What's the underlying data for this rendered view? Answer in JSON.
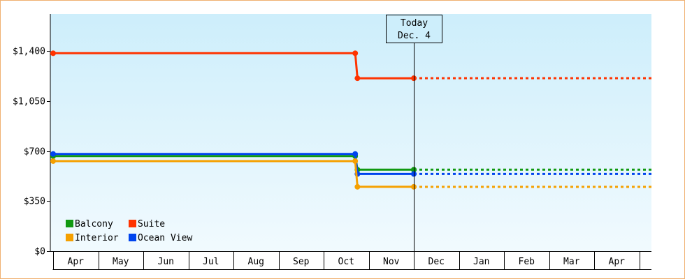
{
  "chart_data": {
    "type": "line",
    "subtype": "step",
    "x_axis": {
      "ticks": [
        "Apr",
        "May",
        "Jun",
        "Jul",
        "Aug",
        "Sep",
        "Oct",
        "Nov",
        "Dec",
        "Jan",
        "Feb",
        "Mar",
        "Apr"
      ]
    },
    "y_axis": {
      "ticks": [
        "$0",
        "$350",
        "$700",
        "$1,050",
        "$1,400"
      ],
      "tick_values": [
        0,
        350,
        700,
        1050,
        1400
      ],
      "ylim": [
        0,
        1660
      ]
    },
    "today_marker": {
      "line1": "Today",
      "line2": "Dec. 4",
      "x": 8.0
    },
    "grid": false,
    "legend_position": "bottom-left",
    "series": [
      {
        "name": "Suite",
        "color": "#ff3300",
        "points": [
          {
            "x": 0.0,
            "y": 1385
          },
          {
            "x": 6.7,
            "y": 1385
          },
          {
            "x": 6.75,
            "y": 1210
          },
          {
            "x": 8.0,
            "y": 1210
          }
        ],
        "projected": {
          "from": 8.0,
          "to": 13.3,
          "y": 1210
        }
      },
      {
        "name": "Balcony",
        "color": "#119911",
        "points": [
          {
            "x": 0.0,
            "y": 665
          },
          {
            "x": 6.7,
            "y": 665
          },
          {
            "x": 6.75,
            "y": 570
          },
          {
            "x": 8.0,
            "y": 570
          }
        ],
        "projected": {
          "from": 8.0,
          "to": 13.3,
          "y": 570
        }
      },
      {
        "name": "Ocean View",
        "color": "#0044ee",
        "points": [
          {
            "x": 0.0,
            "y": 680
          },
          {
            "x": 6.7,
            "y": 680
          },
          {
            "x": 6.75,
            "y": 540
          },
          {
            "x": 8.0,
            "y": 540
          }
        ],
        "projected": {
          "from": 8.0,
          "to": 13.3,
          "y": 540
        }
      },
      {
        "name": "Interior",
        "color": "#f5a000",
        "points": [
          {
            "x": 0.0,
            "y": 630
          },
          {
            "x": 6.7,
            "y": 630
          },
          {
            "x": 6.75,
            "y": 450
          },
          {
            "x": 8.0,
            "y": 450
          }
        ],
        "projected": {
          "from": 8.0,
          "to": 13.3,
          "y": 450
        }
      }
    ],
    "legend": [
      {
        "series": "Balcony",
        "color": "#119911"
      },
      {
        "series": "Suite",
        "color": "#ff3300"
      },
      {
        "series": "Interior",
        "color": "#f5a000"
      },
      {
        "series": "Ocean View",
        "color": "#0044ee"
      }
    ]
  }
}
